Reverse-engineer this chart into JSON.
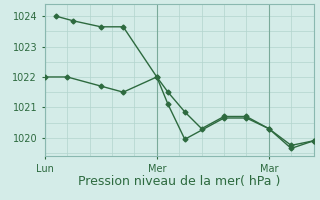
{
  "background_color": "#d4ece8",
  "grid_color": "#b2d4ce",
  "line_color": "#2d6a3f",
  "xlabel": "Pression niveau de la mer( hPa )",
  "xlabel_fontsize": 9,
  "ylim": [
    1019.4,
    1024.4
  ],
  "yticks": [
    1020,
    1021,
    1022,
    1023,
    1024
  ],
  "xlim": [
    0,
    24
  ],
  "x_tick_positions": [
    0,
    10,
    20
  ],
  "x_tick_labels": [
    "Lun",
    "Mer",
    "Mar"
  ],
  "vlines_x": [
    0,
    10,
    20
  ],
  "line1_x": [
    0,
    2,
    5,
    7,
    10,
    11,
    12.5,
    14,
    16,
    18,
    20,
    22,
    24
  ],
  "line1_y": [
    1022.0,
    1022.0,
    1021.7,
    1021.5,
    1022.0,
    1021.5,
    1020.85,
    1020.3,
    1020.7,
    1020.7,
    1020.3,
    1019.75,
    1019.9
  ],
  "line2_x": [
    1,
    2.5,
    5,
    7,
    10,
    11,
    12.5,
    16,
    18,
    20,
    22,
    24
  ],
  "line2_y": [
    1024.0,
    1023.85,
    1023.65,
    1023.65,
    1022.0,
    1021.1,
    1019.95,
    1020.65,
    1020.65,
    1020.3,
    1019.65,
    1019.9
  ],
  "marker_size": 2.5,
  "linewidth": 1.0
}
